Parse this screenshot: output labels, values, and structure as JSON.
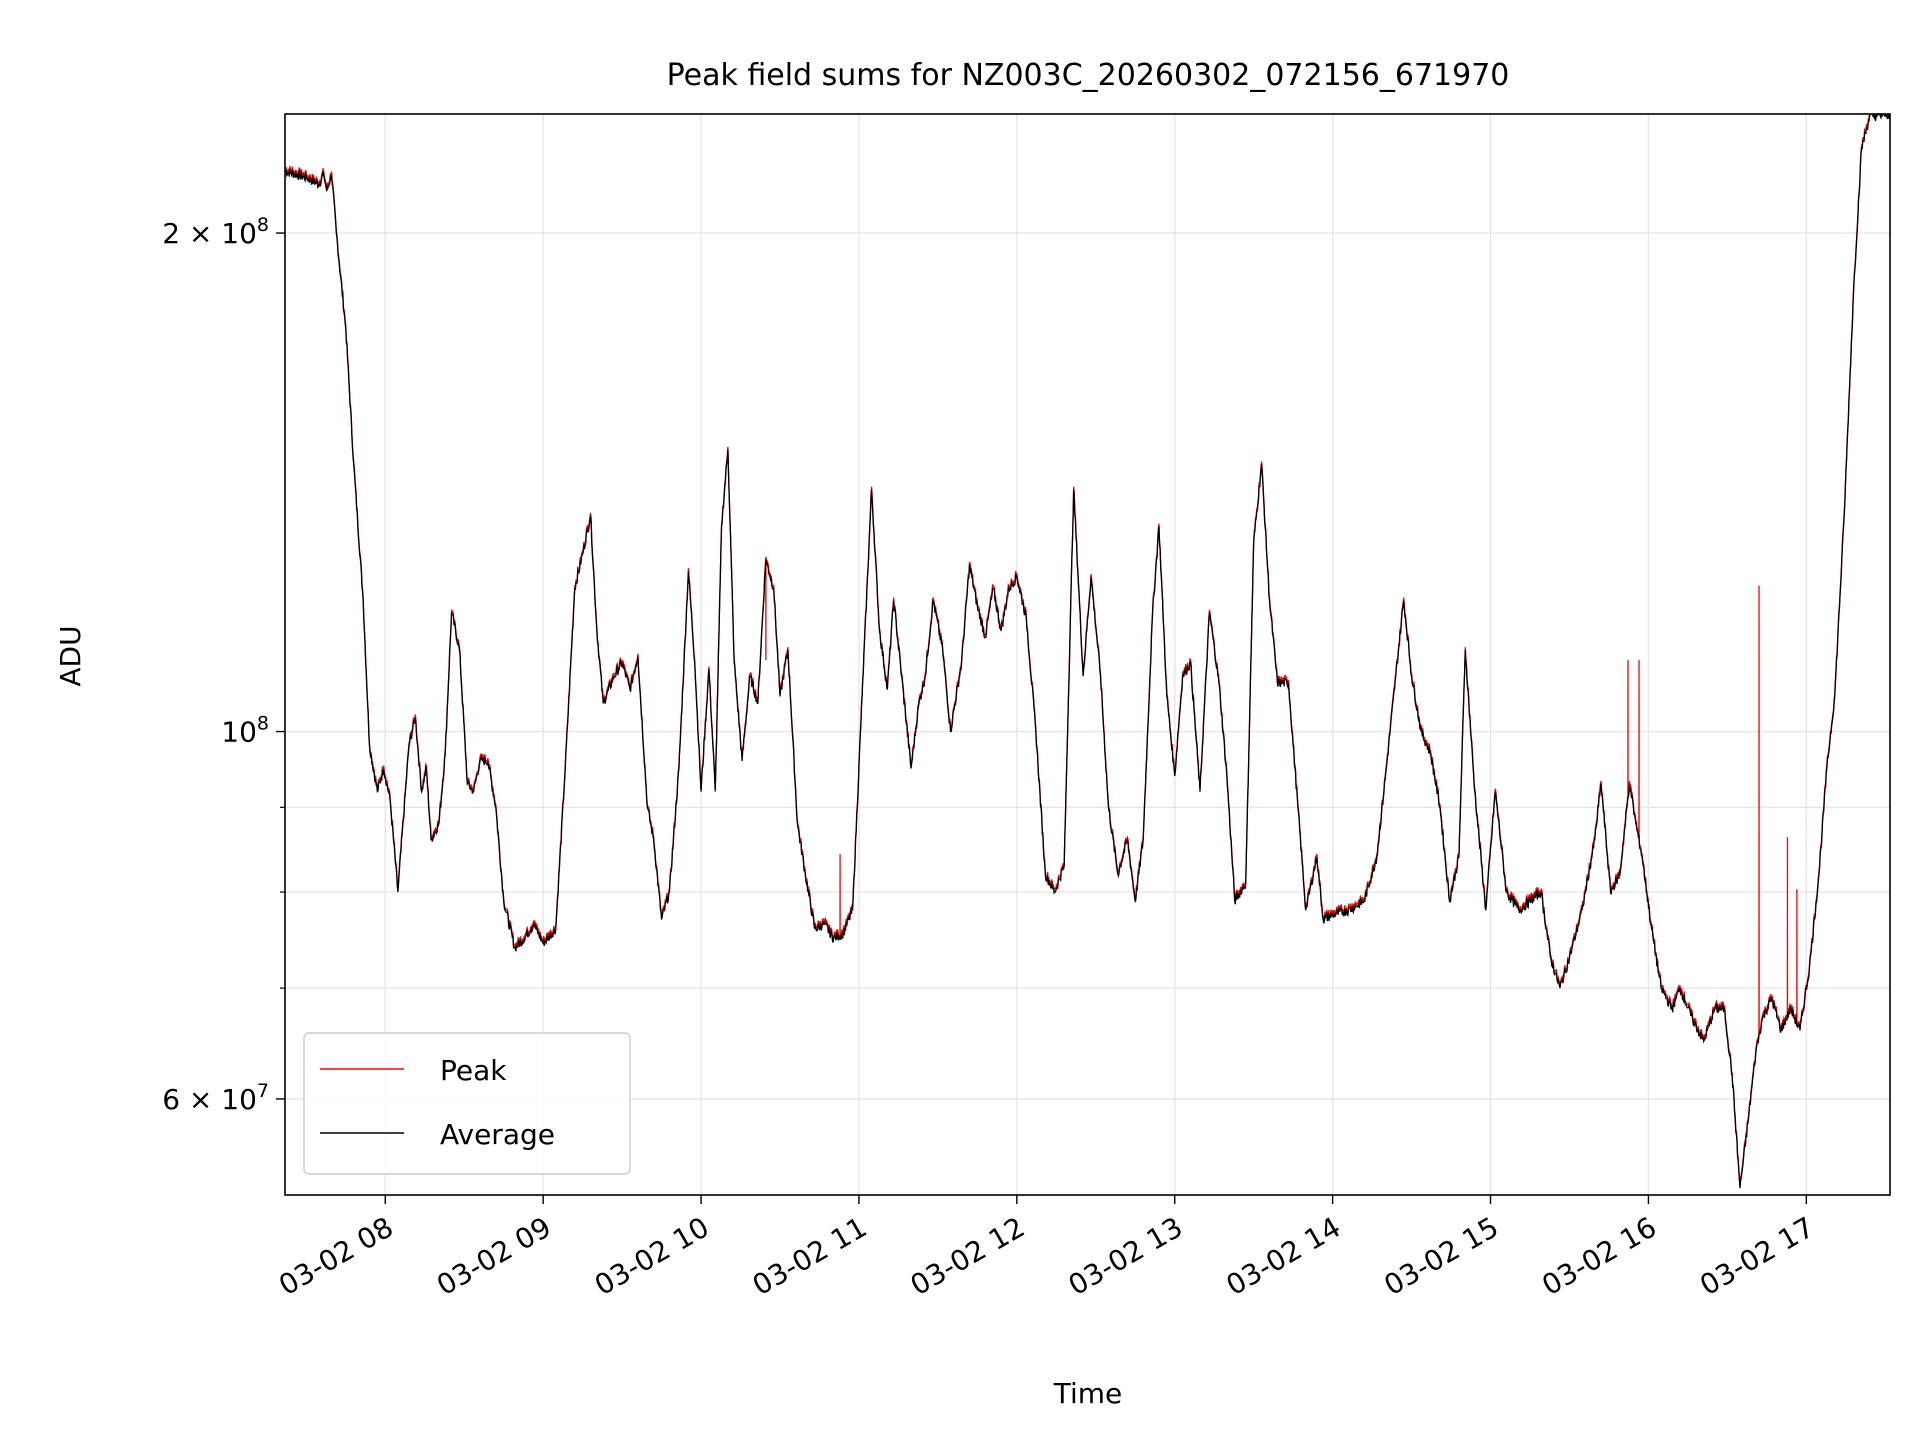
{
  "chart_data": {
    "type": "line",
    "title": "Peak field sums for NZ003C_20260302_072156_671970",
    "xlabel": "Time",
    "ylabel": "ADU",
    "yscale": "log",
    "grid": true,
    "legend_position": "lower-left",
    "x_unit": "hours since 03-02 00:00",
    "xlim": [
      7.365,
      17.53
    ],
    "ylim": [
      52500000,
      236000000
    ],
    "x_ticks": [
      {
        "value": 8,
        "label": "03-02 08"
      },
      {
        "value": 9,
        "label": "03-02 09"
      },
      {
        "value": 10,
        "label": "03-02 10"
      },
      {
        "value": 11,
        "label": "03-02 11"
      },
      {
        "value": 12,
        "label": "03-02 12"
      },
      {
        "value": 13,
        "label": "03-02 13"
      },
      {
        "value": 14,
        "label": "03-02 14"
      },
      {
        "value": 15,
        "label": "03-02 15"
      },
      {
        "value": 16,
        "label": "03-02 16"
      },
      {
        "value": 17,
        "label": "03-02 17"
      }
    ],
    "y_major_ticks": [
      {
        "value": 60000000,
        "mantissa": "6",
        "base": "10",
        "exponent": "7"
      },
      {
        "value": 100000000,
        "mantissa": "",
        "base": "10",
        "exponent": "8"
      },
      {
        "value": 200000000,
        "mantissa": "2",
        "base": "10",
        "exponent": "8"
      }
    ],
    "y_minor_grid": [
      70000000,
      80000000,
      90000000
    ],
    "average_points": [
      [
        7.365,
        218000000
      ],
      [
        7.5,
        216000000
      ],
      [
        7.58,
        214000000
      ],
      [
        7.61,
        217000000
      ],
      [
        7.63,
        212000000
      ],
      [
        7.66,
        217000000
      ],
      [
        7.69,
        200000000
      ],
      [
        7.75,
        175000000
      ],
      [
        7.8,
        145000000
      ],
      [
        7.86,
        120000000
      ],
      [
        7.9,
        98000000
      ],
      [
        7.95,
        92000000
      ],
      [
        7.99,
        95000000
      ],
      [
        8.03,
        91000000
      ],
      [
        8.08,
        80000000
      ],
      [
        8.15,
        98000000
      ],
      [
        8.19,
        102000000
      ],
      [
        8.23,
        92000000
      ],
      [
        8.26,
        95000000
      ],
      [
        8.29,
        86000000
      ],
      [
        8.34,
        88000000
      ],
      [
        8.38,
        97000000
      ],
      [
        8.42,
        118000000
      ],
      [
        8.47,
        112000000
      ],
      [
        8.52,
        93000000
      ],
      [
        8.56,
        92000000
      ],
      [
        8.6,
        96000000
      ],
      [
        8.65,
        96000000
      ],
      [
        8.7,
        90000000
      ],
      [
        8.75,
        79000000
      ],
      [
        8.82,
        74000000
      ],
      [
        8.88,
        75000000
      ],
      [
        8.94,
        76500000
      ],
      [
        9.0,
        74500000
      ],
      [
        9.08,
        76000000
      ],
      [
        9.14,
        95000000
      ],
      [
        9.2,
        122000000
      ],
      [
        9.25,
        128000000
      ],
      [
        9.3,
        135000000
      ],
      [
        9.34,
        115000000
      ],
      [
        9.38,
        104000000
      ],
      [
        9.45,
        108000000
      ],
      [
        9.5,
        110000000
      ],
      [
        9.55,
        106000000
      ],
      [
        9.6,
        111000000
      ],
      [
        9.66,
        90000000
      ],
      [
        9.7,
        86000000
      ],
      [
        9.75,
        77000000
      ],
      [
        9.8,
        80000000
      ],
      [
        9.86,
        95000000
      ],
      [
        9.92,
        125000000
      ],
      [
        9.96,
        110000000
      ],
      [
        10.0,
        92000000
      ],
      [
        10.05,
        109000000
      ],
      [
        10.09,
        92000000
      ],
      [
        10.13,
        133000000
      ],
      [
        10.17,
        148000000
      ],
      [
        10.21,
        110000000
      ],
      [
        10.26,
        96000000
      ],
      [
        10.31,
        108000000
      ],
      [
        10.36,
        104000000
      ],
      [
        10.41,
        127000000
      ],
      [
        10.46,
        122000000
      ],
      [
        10.5,
        105000000
      ],
      [
        10.55,
        112000000
      ],
      [
        10.61,
        88000000
      ],
      [
        10.66,
        82000000
      ],
      [
        10.72,
        76000000
      ],
      [
        10.78,
        76500000
      ],
      [
        10.84,
        75000000
      ],
      [
        10.9,
        75500000
      ],
      [
        10.96,
        78000000
      ],
      [
        11.02,
        105000000
      ],
      [
        11.08,
        140000000
      ],
      [
        11.13,
        115000000
      ],
      [
        11.18,
        106000000
      ],
      [
        11.22,
        120000000
      ],
      [
        11.27,
        108000000
      ],
      [
        11.33,
        95000000
      ],
      [
        11.38,
        104000000
      ],
      [
        11.42,
        108000000
      ],
      [
        11.47,
        120000000
      ],
      [
        11.53,
        112000000
      ],
      [
        11.58,
        100000000
      ],
      [
        11.65,
        110000000
      ],
      [
        11.7,
        126000000
      ],
      [
        11.75,
        119000000
      ],
      [
        11.8,
        114000000
      ],
      [
        11.85,
        122000000
      ],
      [
        11.9,
        115000000
      ],
      [
        11.95,
        122000000
      ],
      [
        12.0,
        124000000
      ],
      [
        12.06,
        117000000
      ],
      [
        12.12,
        100000000
      ],
      [
        12.18,
        82000000
      ],
      [
        12.24,
        80000000
      ],
      [
        12.3,
        83000000
      ],
      [
        12.36,
        140000000
      ],
      [
        12.42,
        108000000
      ],
      [
        12.47,
        124000000
      ],
      [
        12.53,
        108000000
      ],
      [
        12.58,
        90000000
      ],
      [
        12.64,
        82000000
      ],
      [
        12.7,
        86000000
      ],
      [
        12.75,
        79000000
      ],
      [
        12.8,
        86000000
      ],
      [
        12.86,
        118000000
      ],
      [
        12.9,
        133000000
      ],
      [
        12.95,
        105000000
      ],
      [
        13.0,
        94000000
      ],
      [
        13.05,
        108000000
      ],
      [
        13.1,
        110000000
      ],
      [
        13.16,
        92000000
      ],
      [
        13.22,
        118000000
      ],
      [
        13.28,
        107000000
      ],
      [
        13.33,
        94000000
      ],
      [
        13.38,
        79000000
      ],
      [
        13.45,
        81000000
      ],
      [
        13.5,
        130000000
      ],
      [
        13.55,
        145000000
      ],
      [
        13.6,
        120000000
      ],
      [
        13.65,
        107000000
      ],
      [
        13.72,
        107000000
      ],
      [
        13.78,
        90000000
      ],
      [
        13.83,
        78000000
      ],
      [
        13.9,
        84000000
      ],
      [
        13.94,
        77000000
      ],
      [
        14.0,
        77500000
      ],
      [
        14.1,
        78000000
      ],
      [
        14.2,
        79000000
      ],
      [
        14.28,
        84000000
      ],
      [
        14.34,
        95000000
      ],
      [
        14.4,
        108000000
      ],
      [
        14.45,
        120000000
      ],
      [
        14.5,
        108000000
      ],
      [
        14.56,
        100000000
      ],
      [
        14.62,
        97000000
      ],
      [
        14.68,
        90000000
      ],
      [
        14.74,
        79000000
      ],
      [
        14.8,
        84000000
      ],
      [
        14.84,
        112000000
      ],
      [
        14.9,
        92000000
      ],
      [
        14.97,
        78000000
      ],
      [
        15.03,
        92000000
      ],
      [
        15.1,
        80000000
      ],
      [
        15.18,
        78000000
      ],
      [
        15.25,
        79000000
      ],
      [
        15.32,
        80000000
      ],
      [
        15.38,
        73000000
      ],
      [
        15.44,
        70000000
      ],
      [
        15.5,
        73000000
      ],
      [
        15.58,
        78000000
      ],
      [
        15.66,
        86000000
      ],
      [
        15.7,
        93000000
      ],
      [
        15.76,
        80000000
      ],
      [
        15.82,
        82000000
      ],
      [
        15.88,
        93000000
      ],
      [
        15.92,
        88000000
      ],
      [
        15.96,
        84000000
      ],
      [
        16.02,
        76000000
      ],
      [
        16.08,
        70000000
      ],
      [
        16.15,
        68000000
      ],
      [
        16.2,
        70000000
      ],
      [
        16.28,
        67000000
      ],
      [
        16.35,
        65000000
      ],
      [
        16.42,
        68000000
      ],
      [
        16.48,
        68000000
      ],
      [
        16.53,
        62000000
      ],
      [
        16.58,
        53000000
      ],
      [
        16.63,
        58000000
      ],
      [
        16.68,
        64000000
      ],
      [
        16.72,
        67000000
      ],
      [
        16.78,
        69000000
      ],
      [
        16.84,
        66000000
      ],
      [
        16.9,
        68000000
      ],
      [
        16.96,
        66000000
      ],
      [
        17.02,
        72000000
      ],
      [
        17.08,
        82000000
      ],
      [
        17.13,
        95000000
      ],
      [
        17.18,
        105000000
      ],
      [
        17.24,
        135000000
      ],
      [
        17.3,
        185000000
      ],
      [
        17.35,
        225000000
      ],
      [
        17.4,
        235000000
      ],
      [
        17.53,
        236000000
      ]
    ],
    "peak_spikes": [
      [
        10.41,
        110000000
      ],
      [
        10.88,
        84000000
      ],
      [
        15.87,
        110000000
      ],
      [
        15.94,
        110000000
      ],
      [
        16.7,
        122000000
      ],
      [
        16.88,
        86000000
      ],
      [
        16.94,
        80000000
      ]
    ],
    "series": [
      {
        "name": "Peak",
        "color": "#ff0000",
        "offset": 0.004
      },
      {
        "name": "Average",
        "color": "#000000",
        "offset": 0.0
      }
    ]
  }
}
